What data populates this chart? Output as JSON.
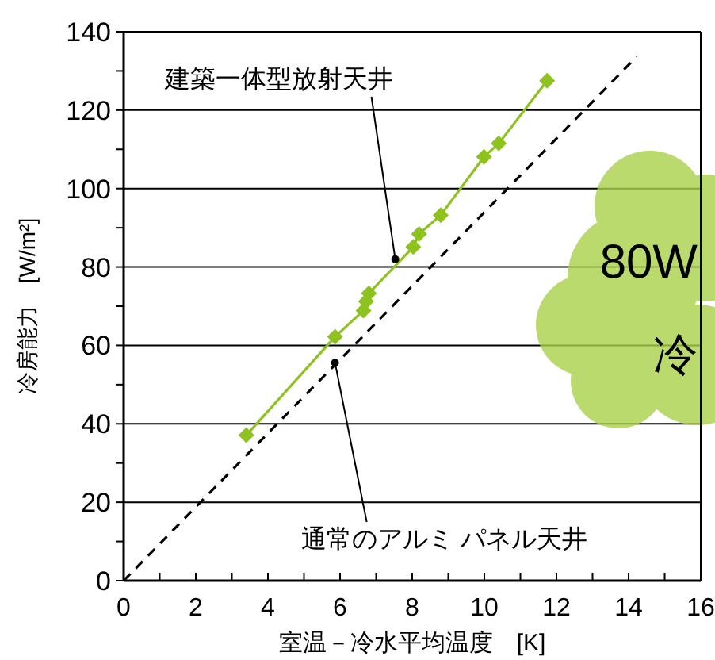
{
  "chart_data": {
    "type": "line",
    "xlabel": "室温－冷水平均温度　[K]",
    "ylabel": "冷房能力　[W/m²]",
    "xlim": [
      0,
      16
    ],
    "ylim": [
      0,
      140
    ],
    "xticks": [
      0,
      {
        "value": 1,
        "label": null
      },
      2,
      {
        "value": 3,
        "label": null
      },
      4,
      {
        "value": 5,
        "label": null
      },
      6,
      {
        "value": 7,
        "label": null
      },
      8,
      {
        "value": 9,
        "label": null
      },
      10,
      {
        "value": 11,
        "label": null
      },
      12,
      {
        "value": 13,
        "label": null
      },
      14,
      {
        "value": 15,
        "label": null
      },
      16
    ],
    "yticks": [
      0,
      {
        "value": 10,
        "label": null
      },
      20,
      {
        "value": 30,
        "label": null
      },
      40,
      {
        "value": 50,
        "label": null
      },
      60,
      {
        "value": 70,
        "label": null
      },
      80,
      {
        "value": 90,
        "label": null
      },
      100,
      {
        "value": 110,
        "label": null
      },
      120,
      {
        "value": 130,
        "label": null
      },
      140
    ],
    "grid": "y",
    "series": [
      {
        "color": "#8dc21f",
        "marker": "diamond",
        "line_style": "solid",
        "x": [
          3.4,
          5.86,
          6.65,
          6.72,
          6.8,
          8.03,
          8.19,
          8.79,
          9.99,
          10.4,
          11.74
        ],
        "values": [
          37.1,
          62.2,
          68.9,
          71.2,
          73.3,
          85.1,
          88.4,
          93.2,
          108.1,
          111.5,
          127.5
        ]
      },
      {
        "color": "#000000",
        "marker": "none",
        "line_style": "dashed",
        "x": [
          0,
          14.22
        ],
        "values": [
          0,
          133.6
        ]
      }
    ],
    "annotations": [
      {
        "text": "建築一体型放射天井",
        "x": 7.53,
        "y": 82
      },
      {
        "text": "通常のアルミ パネル天井",
        "x": 5.86,
        "y": 55.6
      },
      "80W",
      "冷"
    ]
  }
}
